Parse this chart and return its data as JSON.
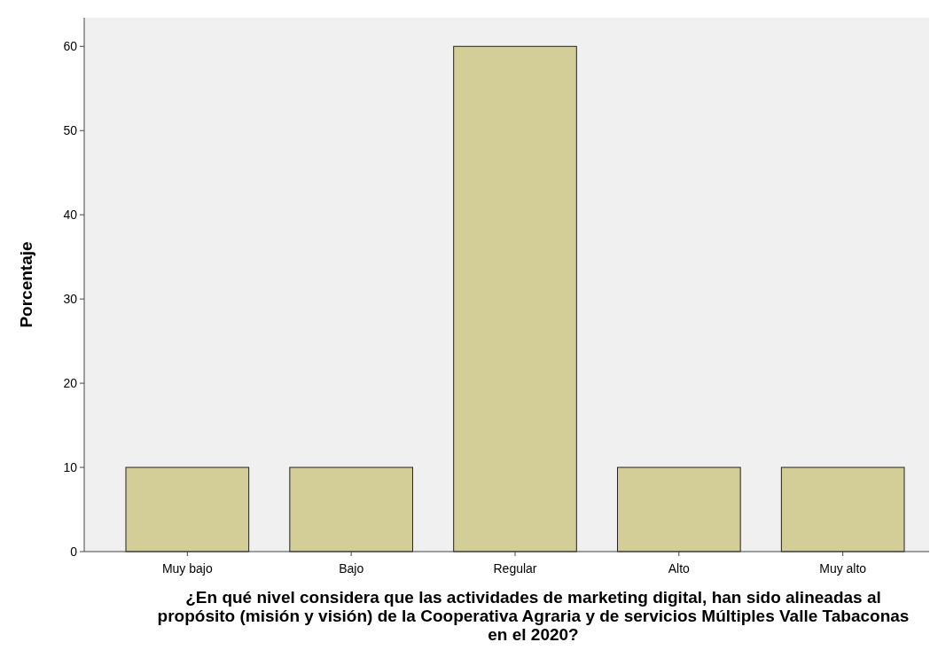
{
  "chart_data": {
    "type": "bar",
    "xlabel": "¿En qué nivel considera que las actividades de marketing digital, han sido alineadas al propósito (misión y visión) de la Cooperativa Agraria y de servicios Múltiples Valle Tabaconas en el 2020?",
    "ylabel": "Porcentaje",
    "categories": [
      "Muy bajo",
      "Bajo",
      "Regular",
      "Alto",
      "Muy alto"
    ],
    "values": [
      10,
      10,
      60,
      10,
      10
    ],
    "color": "#d3ce97",
    "ylim": [
      0,
      63.4
    ],
    "yticks": [
      0,
      10,
      20,
      30,
      40,
      50,
      60
    ],
    "grid": false
  }
}
